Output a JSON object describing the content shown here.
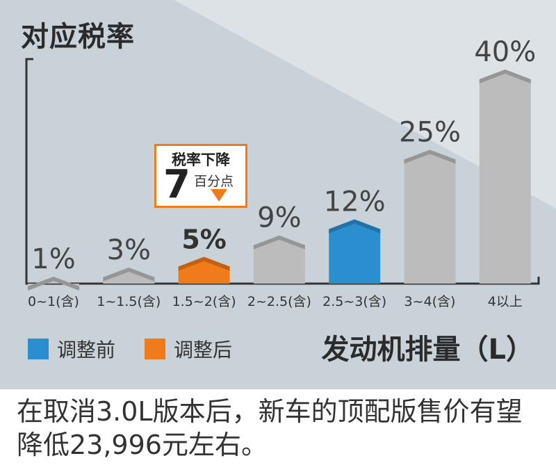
{
  "chart_data": {
    "type": "bar",
    "title": "对应税率",
    "xlabel": "发动机排量（L）",
    "categories": [
      "0~1(含)",
      "1~1.5(含)",
      "1.5~2(含)",
      "2~2.5(含)",
      "2.5~3(含)",
      "3~4(含)",
      "4以上"
    ],
    "values": [
      1,
      3,
      5,
      9,
      12,
      25,
      40
    ],
    "value_labels": [
      "1%",
      "3%",
      "5%",
      "9%",
      "12%",
      "25%",
      "40%"
    ],
    "ylim": [
      0,
      40
    ],
    "highlight": {
      "2.5~3(含)": "调整前",
      "1.5~2(含)": "调整后"
    },
    "colors": {
      "default": "#bcbcbc",
      "before": "#2b8fcf",
      "after": "#f07b1a"
    }
  },
  "legend": [
    {
      "label": "调整前",
      "color": "#2b8fcf"
    },
    {
      "label": "调整后",
      "color": "#f07b1a"
    }
  ],
  "callout": {
    "title": "税率下降",
    "number": "7",
    "unit": "百分点",
    "arrow": "down-triangle-icon"
  },
  "footer": {
    "text": "在取消3.0L版本后，新车的顶配版售价有望降低23,996元左右。"
  }
}
